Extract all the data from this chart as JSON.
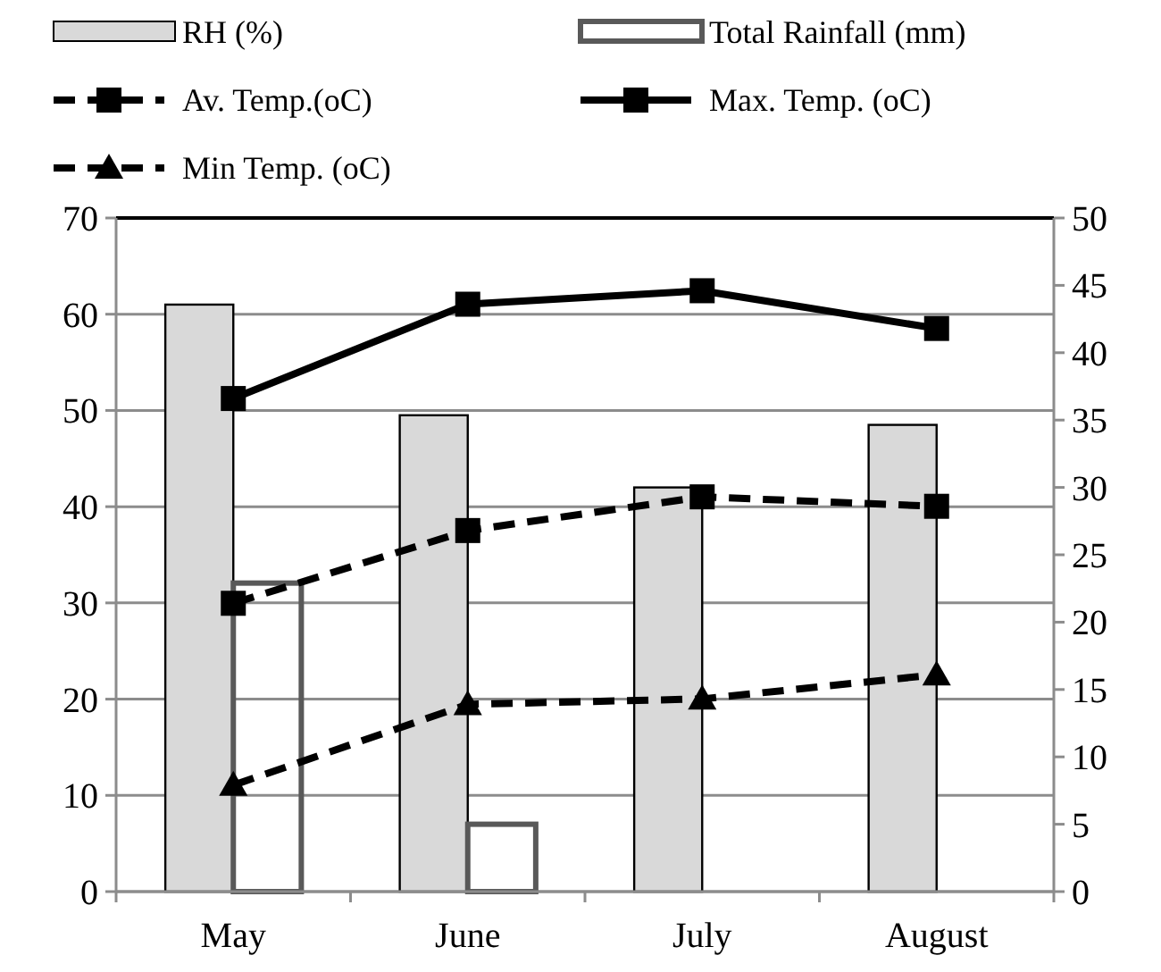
{
  "chart_data": {
    "type": "bar",
    "categories": [
      "May",
      "June",
      "July",
      "August"
    ],
    "series": [
      {
        "name": "RH (%)",
        "color": "#d9d9d9",
        "values": [
          61,
          49.5,
          42,
          48.5
        ]
      },
      {
        "name": "Total Rainfall (mm)",
        "axis": "y2",
        "color": "#595959",
        "values": [
          22.9,
          5,
          0,
          0
        ]
      },
      {
        "name": "Av. Temp.(oC)",
        "type": "line",
        "axis": "y2",
        "color": "#000000",
        "marker": "square",
        "line_style": "dashed",
        "values": [
          21.4,
          26.8,
          29.3,
          28.6
        ]
      },
      {
        "name": "Max. Temp. (oC)",
        "type": "line",
        "axis": "y2",
        "color": "#000000",
        "marker": "square",
        "line_style": "solid",
        "values": [
          36.6,
          43.6,
          44.6,
          41.8
        ]
      },
      {
        "name": "Min Temp. (oC)",
        "type": "line",
        "axis": "y2",
        "color": "#000000",
        "marker": "triangle",
        "line_style": "dashed",
        "values": [
          7.9,
          13.9,
          14.3,
          16.1
        ]
      }
    ],
    "ylim": [
      0,
      70
    ],
    "yticks": [
      0,
      10,
      20,
      30,
      40,
      50,
      60,
      70
    ],
    "y2lim": [
      0,
      50
    ],
    "y2ticks": [
      0,
      5,
      10,
      15,
      20,
      25,
      30,
      35,
      40,
      45,
      50
    ],
    "grid": "y",
    "legend": "top"
  }
}
